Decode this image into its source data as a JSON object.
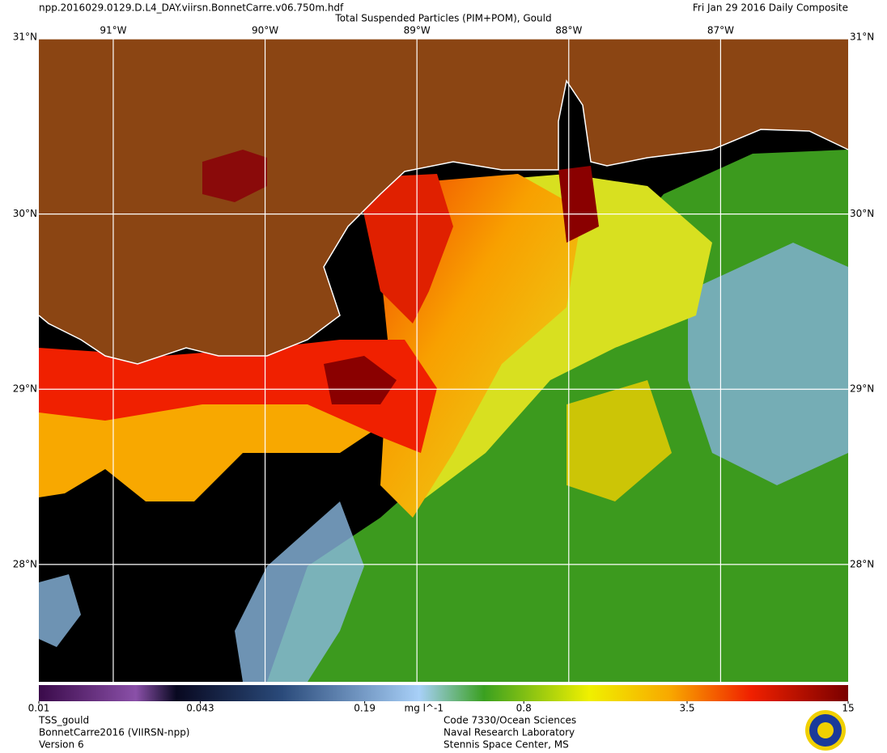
{
  "header": {
    "filename": "npp.2016029.0129.D.L4_DAY.viirsn.BonnetCarre.v06.750m.hdf",
    "title": "Total Suspended Particles (PIM+POM), Gould",
    "date": "Fri Jan 29 2016 Daily Composite"
  },
  "map": {
    "lon_lim": [
      -91.49,
      -86.16
    ],
    "lat_lim": [
      27.33,
      31
    ],
    "lon_ticks": [
      {
        "value": -91,
        "label": "91°W"
      },
      {
        "value": -90,
        "label": "90°W"
      },
      {
        "value": -89,
        "label": "89°W"
      },
      {
        "value": -88,
        "label": "88°W"
      },
      {
        "value": -87,
        "label": "87°W"
      }
    ],
    "lat_ticks": [
      {
        "value": 31,
        "label": "31°N"
      },
      {
        "value": 30,
        "label": "30°N"
      },
      {
        "value": 29,
        "label": "29°N"
      },
      {
        "value": 28,
        "label": "28°N"
      }
    ]
  },
  "colorbar": {
    "scale": "log",
    "lim": [
      0.01,
      15
    ],
    "ticks": [
      0.01,
      0.043,
      0.19,
      0.8,
      3.5,
      15
    ],
    "unit": "mg l^-1"
  },
  "footer": {
    "left": [
      "TSS_gould",
      "BonnetCarre2016 (VIIRSN-npp)",
      "Version 6"
    ],
    "center": [
      "Code 7330/Ocean Sciences",
      "Naval Research Laboratory",
      "Stennis Space Center, MS"
    ]
  }
}
